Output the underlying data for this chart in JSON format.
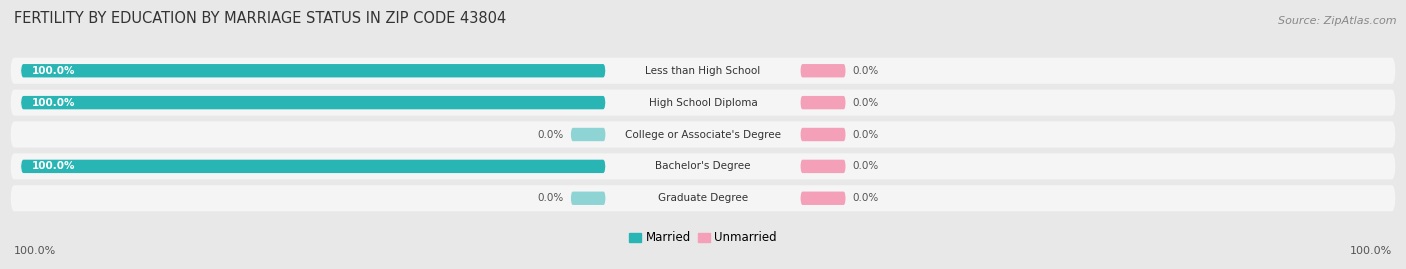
{
  "title": "FERTILITY BY EDUCATION BY MARRIAGE STATUS IN ZIP CODE 43804",
  "source": "Source: ZipAtlas.com",
  "categories": [
    "Less than High School",
    "High School Diploma",
    "College or Associate's Degree",
    "Bachelor's Degree",
    "Graduate Degree"
  ],
  "married_pct": [
    100.0,
    100.0,
    0.0,
    100.0,
    0.0
  ],
  "unmarried_pct": [
    0.0,
    0.0,
    0.0,
    0.0,
    0.0
  ],
  "married_color": "#2ab5b5",
  "married_color_light": "#8ed4d4",
  "unmarried_color": "#f4a0b8",
  "background_color": "#e8e8e8",
  "row_bg_color": "#f5f5f5",
  "title_fontsize": 10.5,
  "source_fontsize": 8,
  "label_fontsize": 7.5,
  "bar_label_fontsize": 7.5,
  "legend_fontsize": 8.5,
  "axis_label_fontsize": 8
}
